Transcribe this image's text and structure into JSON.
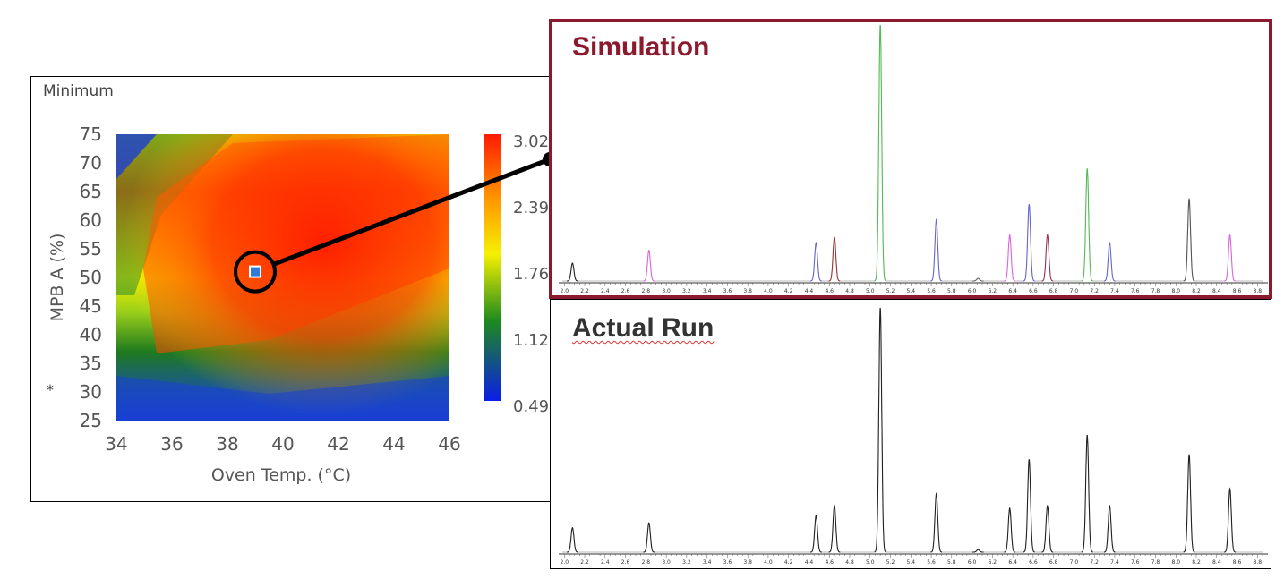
{
  "heatmap": {
    "panel_title": "Minimum",
    "marker_symbol": "*",
    "colorbar_ticks": [
      "3.02",
      "2.39",
      "1.76",
      "1.12",
      "0.49"
    ],
    "colors": {
      "low": "#1a3fd6",
      "mid": "#1e7a1e",
      "high": "#ff2200",
      "marker": "#2e7bd8"
    }
  },
  "chart_data": [
    {
      "type": "heatmap",
      "title": "",
      "xlabel": "Oven Temp. (°C)",
      "ylabel": "MPB A (%)",
      "xlim": [
        34,
        46
      ],
      "ylim": [
        25,
        75
      ],
      "x_ticks": [
        "34",
        "36",
        "38",
        "40",
        "42",
        "44",
        "46"
      ],
      "y_ticks": [
        "75",
        "70",
        "65",
        "60",
        "55",
        "50",
        "45",
        "40",
        "35",
        "30",
        "25"
      ],
      "colorbar_range": [
        0.49,
        3.02
      ],
      "selected_point": {
        "x": 39,
        "y": 51
      }
    },
    {
      "type": "line",
      "title": "Simulation",
      "x_tick_labels": [
        "2.0",
        "2.2",
        "2.4",
        "2.6",
        "2.8",
        "3.0",
        "3.2",
        "3.4",
        "3.6",
        "3.8",
        "4.0",
        "4.2",
        "4.4",
        "4.6",
        "4.8",
        "5.0",
        "5.2",
        "5.4",
        "5.6",
        "5.8",
        "6.0",
        "6.2",
        "6.4",
        "6.6",
        "6.8",
        "7.0",
        "7.2",
        "7.4",
        "7.6",
        "7.8",
        "8.0",
        "8.2",
        "8.4",
        "8.6",
        "8.8"
      ],
      "xlim": [
        1.98,
        8.85
      ],
      "peaks": [
        {
          "x": 2.08,
          "h": 0.07,
          "color": "#222222"
        },
        {
          "x": 2.83,
          "h": 0.12,
          "color": "#dd66dd"
        },
        {
          "x": 4.47,
          "h": 0.15,
          "color": "#6666cc"
        },
        {
          "x": 4.65,
          "h": 0.17,
          "color": "#993333"
        },
        {
          "x": 5.1,
          "h": 1.0,
          "color": "#55bb55"
        },
        {
          "x": 5.65,
          "h": 0.24,
          "color": "#6666cc"
        },
        {
          "x": 6.06,
          "h": 0.01,
          "color": "#666666"
        },
        {
          "x": 6.37,
          "h": 0.18,
          "color": "#dd66dd"
        },
        {
          "x": 6.56,
          "h": 0.3,
          "color": "#6666cc"
        },
        {
          "x": 6.74,
          "h": 0.18,
          "color": "#993355"
        },
        {
          "x": 7.13,
          "h": 0.44,
          "color": "#55bb55"
        },
        {
          "x": 7.35,
          "h": 0.15,
          "color": "#6666cc"
        },
        {
          "x": 8.13,
          "h": 0.32,
          "color": "#555555"
        },
        {
          "x": 8.53,
          "h": 0.18,
          "color": "#dd66dd"
        }
      ]
    },
    {
      "type": "line",
      "title": "Actual Run",
      "x_tick_labels": [
        "2.0",
        "2.2",
        "2.4",
        "2.6",
        "2.8",
        "3.0",
        "3.2",
        "3.4",
        "3.6",
        "3.8",
        "4.0",
        "4.2",
        "4.4",
        "4.6",
        "4.8",
        "5.0",
        "5.2",
        "5.4",
        "5.6",
        "5.8",
        "6.0",
        "6.2",
        "6.4",
        "6.6",
        "6.8",
        "7.0",
        "7.2",
        "7.4",
        "7.6",
        "7.8",
        "8.0",
        "8.2",
        "8.4",
        "8.6",
        "8.8"
      ],
      "xlim": [
        1.98,
        8.85
      ],
      "peaks": [
        {
          "x": 2.08,
          "h": 0.1,
          "color": "#222222"
        },
        {
          "x": 2.83,
          "h": 0.12,
          "color": "#222222"
        },
        {
          "x": 4.47,
          "h": 0.15,
          "color": "#222222"
        },
        {
          "x": 4.65,
          "h": 0.19,
          "color": "#222222"
        },
        {
          "x": 5.1,
          "h": 1.0,
          "color": "#222222"
        },
        {
          "x": 5.65,
          "h": 0.24,
          "color": "#222222"
        },
        {
          "x": 6.06,
          "h": 0.01,
          "color": "#222222"
        },
        {
          "x": 6.37,
          "h": 0.18,
          "color": "#222222"
        },
        {
          "x": 6.56,
          "h": 0.38,
          "color": "#222222"
        },
        {
          "x": 6.74,
          "h": 0.19,
          "color": "#222222"
        },
        {
          "x": 7.13,
          "h": 0.48,
          "color": "#222222"
        },
        {
          "x": 7.35,
          "h": 0.19,
          "color": "#222222"
        },
        {
          "x": 8.13,
          "h": 0.4,
          "color": "#222222"
        },
        {
          "x": 8.53,
          "h": 0.26,
          "color": "#222222"
        }
      ]
    }
  ]
}
